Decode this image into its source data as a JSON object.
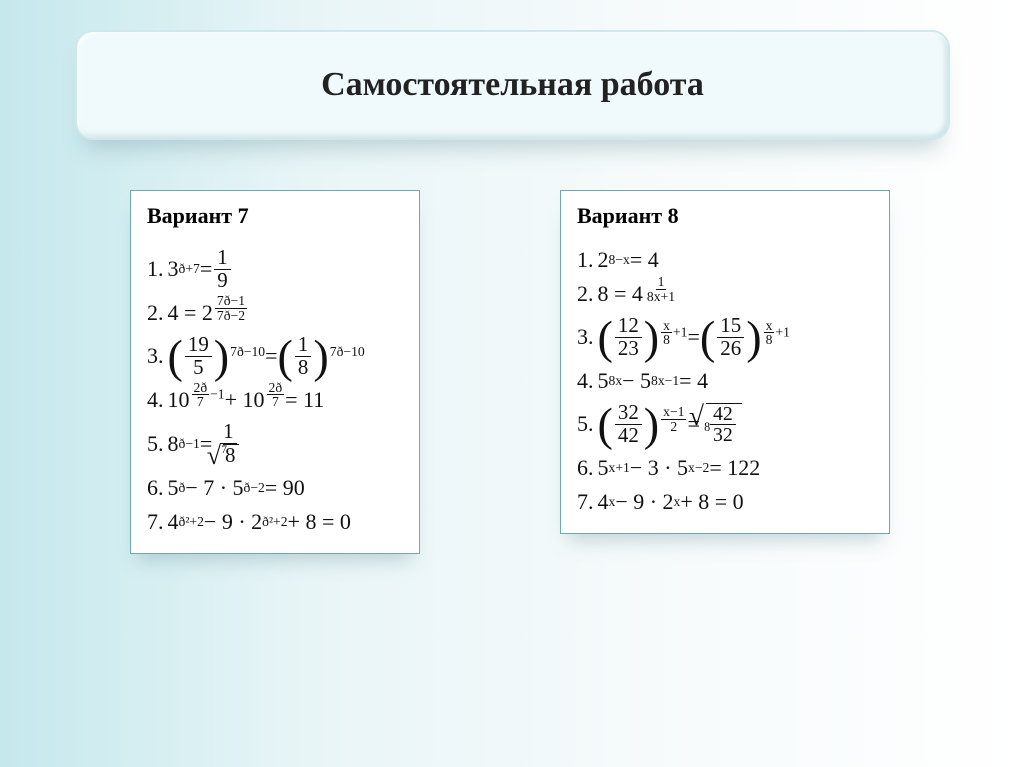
{
  "slide": {
    "title": "Самостоятельная работа",
    "background_start": "#c5e8ed",
    "background_end": "#ffffff",
    "title_box": {
      "bg": "#f0fafc",
      "border": "#d0e8eb",
      "radius": 18,
      "title_fontsize": 34
    },
    "panels": {
      "border_color": "#6fa8b0",
      "bg": "#ffffff",
      "variant_fontsize": 22,
      "eq_fontsize": 22
    }
  },
  "variant7": {
    "label": "Вариант 7",
    "eq1": {
      "n": "1.",
      "base": "3",
      "exp": "ð+7",
      "eq": " = ",
      "rnum": "1",
      "rden": "9"
    },
    "eq2": {
      "n": "2.",
      "lhs": "4 = 2",
      "en": "7ð−1",
      "ed": "7ð−2"
    },
    "eq3": {
      "n": "3.",
      "ln": "19",
      "ld": "5",
      "lexp": "7ð−10",
      "sep": " = ",
      "rn": "1",
      "rd": "8",
      "rexp": "7ð−10"
    },
    "eq4": {
      "n": "4.",
      "a": "10",
      "e1n": "2ð",
      "e1d": "7",
      "e1t": "−1",
      "mid": " + 10",
      "e2n": "2ð",
      "e2d": "7",
      "rhs": " = 11"
    },
    "eq5": {
      "n": "5.",
      "base": "8",
      "exp": "ð−1",
      "eq": " = ",
      "dnum": "1",
      "ridx": "7",
      "rarg": "8"
    },
    "eq6": {
      "n": "6.",
      "a": "5",
      "e1": "ð",
      "mid": " − 7 · 5",
      "e2": "ð−2",
      "rhs": " = 90"
    },
    "eq7": {
      "n": "7.",
      "a": "4",
      "e1": "ð²+2",
      "mid": " − 9 · 2",
      "e2": "ð²+2",
      "rhs": " + 8 = 0"
    }
  },
  "variant8": {
    "label": "Вариант 8",
    "eq1": {
      "n": "1.",
      "base": "2",
      "exp": "8−x",
      "rhs": " = 4"
    },
    "eq2": {
      "n": "2.",
      "lhs": "8 = 4",
      "en": "1",
      "ed": "8x+1"
    },
    "eq3": {
      "n": "3.",
      "ln": "12",
      "ld": "23",
      "len": "x",
      "led": "8",
      "let": "+1",
      "sep": " = ",
      "rn": "15",
      "rd": "26",
      "ren": "x",
      "red": "8",
      "ret": "+1"
    },
    "eq4": {
      "n": "4.",
      "a": "5",
      "e1": "8x",
      "mid": " − 5",
      "e2": "8x−1",
      "rhs": " = 4"
    },
    "eq5": {
      "n": "5.",
      "ln": "32",
      "ld": "42",
      "len": "x−1",
      "led": "2",
      "sep": " = ",
      "ridx": "8",
      "rn": "42",
      "rd": "32"
    },
    "eq6": {
      "n": "6.",
      "a": "5",
      "e1": "x+1",
      "mid": " − 3 · 5",
      "e2": "x−2",
      "rhs": " = 122"
    },
    "eq7": {
      "n": "7.",
      "a": "4",
      "e1": "x",
      "mid": " − 9 · 2",
      "e2": "x",
      "rhs": " + 8 = 0"
    }
  }
}
